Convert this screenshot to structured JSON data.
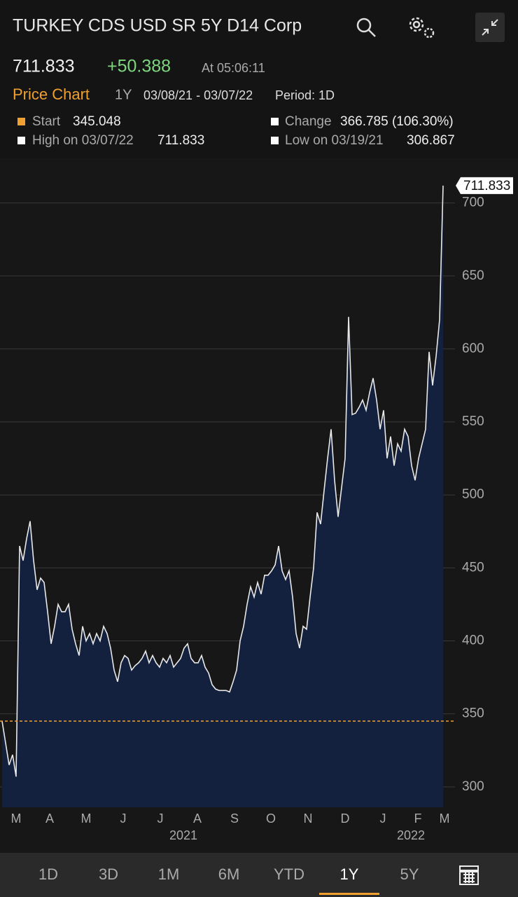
{
  "header": {
    "title": "TURKEY CDS USD SR 5Y D14 Corp",
    "price": "711.833",
    "change": "+50.388",
    "time": "At 05:06:11"
  },
  "info": {
    "label": "Price Chart",
    "range": "1Y",
    "dates": "03/08/21 - 03/07/22",
    "period": "Period: 1D",
    "start_label": "Start",
    "start": "345.048",
    "change_label": "Change",
    "change": "366.785 (106.30%)",
    "high_label": "High on 03/07/22",
    "high": "711.833",
    "low_label": "Low on 03/19/21",
    "low": "306.867"
  },
  "chart_data": {
    "type": "area",
    "color": "#13213f",
    "line_color": "#e8e8e8",
    "grid": true,
    "values": [
      345,
      330,
      315,
      322,
      307,
      465,
      455,
      470,
      482,
      455,
      435,
      443,
      440,
      420,
      398,
      410,
      425,
      420,
      420,
      425,
      408,
      398,
      390,
      410,
      400,
      405,
      398,
      405,
      400,
      410,
      405,
      395,
      380,
      372,
      385,
      390,
      388,
      380,
      383,
      385,
      388,
      393,
      385,
      390,
      385,
      382,
      388,
      385,
      390,
      382,
      385,
      388,
      395,
      398,
      388,
      385,
      385,
      390,
      382,
      378,
      370,
      367,
      366,
      366,
      366,
      365,
      372,
      380,
      400,
      410,
      425,
      437,
      430,
      440,
      432,
      445,
      445,
      448,
      452,
      465,
      448,
      442,
      448,
      430,
      405,
      395,
      410,
      408,
      430,
      450,
      488,
      480,
      503,
      525,
      545,
      510,
      485,
      505,
      525,
      622,
      555,
      556,
      560,
      565,
      558,
      570,
      580,
      565,
      545,
      558,
      525,
      540,
      520,
      535,
      530,
      545,
      540,
      520,
      510,
      525,
      535,
      545,
      598,
      575,
      595,
      620,
      711.833
    ],
    "xlim": [
      0,
      126
    ],
    "ylim": [
      286,
      731
    ],
    "yticks": [
      300,
      350,
      400,
      450,
      500,
      550,
      600,
      650,
      700
    ],
    "xticks": [
      {
        "value": 4,
        "label": "M"
      },
      {
        "value": 13.6,
        "label": "A"
      },
      {
        "value": 24,
        "label": "M"
      },
      {
        "value": 34.6,
        "label": "J"
      },
      {
        "value": 45.2,
        "label": "J"
      },
      {
        "value": 55.8,
        "label": "A"
      },
      {
        "value": 66.4,
        "label": "S"
      },
      {
        "value": 76.8,
        "label": "O"
      },
      {
        "value": 87.4,
        "label": "N"
      },
      {
        "value": 98,
        "label": "D"
      },
      {
        "value": 108.8,
        "label": "J"
      },
      {
        "value": 118.8,
        "label": "F"
      },
      {
        "value": 126.4,
        "label": "M"
      }
    ],
    "year_labels": [
      {
        "value": 51.8,
        "label": "2021"
      },
      {
        "value": 116.8,
        "label": "2022"
      }
    ],
    "reference_line": 345.048,
    "reference_color": "#f0a030"
  },
  "tabs": {
    "items": [
      "1D",
      "3D",
      "1M",
      "6M",
      "YTD",
      "1Y",
      "5Y"
    ],
    "active": "1Y"
  }
}
